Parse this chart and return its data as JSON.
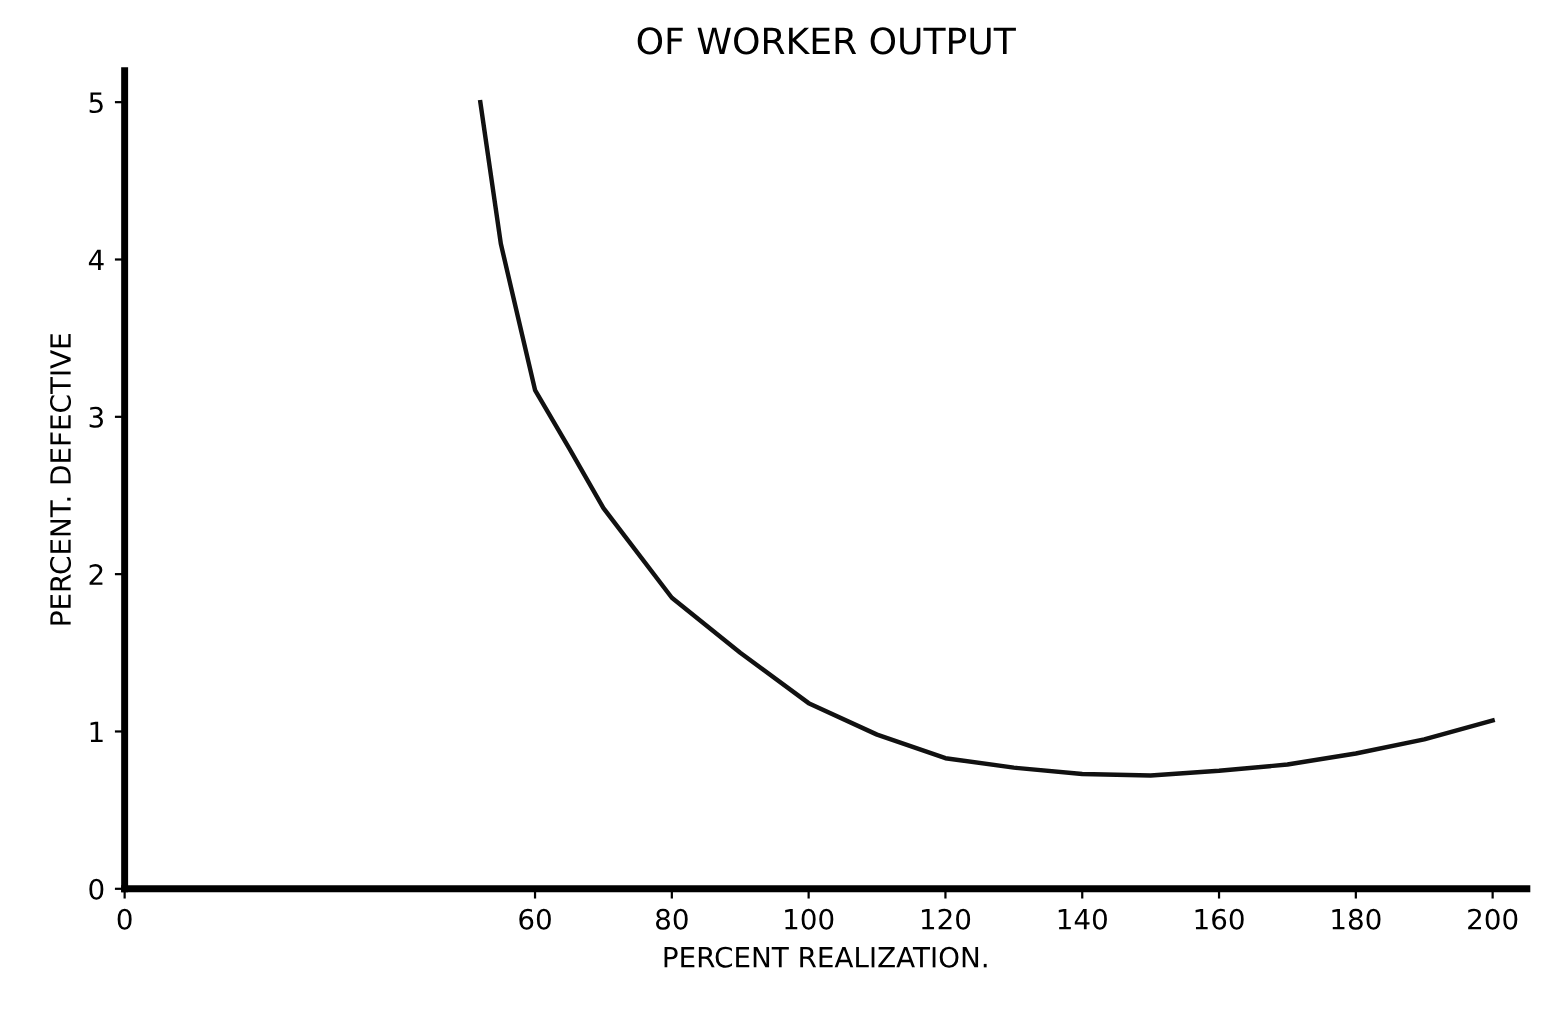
{
  "chart_data": {
    "type": "line",
    "title": "OF WORKER OUTPUT",
    "xlabel": "PERCENT REALIZATION.",
    "ylabel": "PERCENT. DEFECTIVE",
    "x": [
      52,
      55,
      60,
      65,
      70,
      80,
      90,
      100,
      110,
      120,
      130,
      140,
      150,
      160,
      170,
      180,
      190,
      200
    ],
    "series": [
      {
        "color": "#111111",
        "values": [
          5.0,
          4.1,
          3.17,
          2.8,
          2.42,
          1.85,
          1.5,
          1.18,
          0.98,
          0.83,
          0.77,
          0.73,
          0.72,
          0.75,
          0.79,
          0.86,
          0.95,
          1.07
        ]
      }
    ],
    "xlim": [
      0,
      205
    ],
    "xticks": [
      0,
      60,
      80,
      100,
      120,
      140,
      160,
      180,
      200
    ],
    "ylim": [
      0,
      5.2
    ],
    "yticks": [
      0,
      1,
      2,
      3,
      4,
      5
    ],
    "grid": false,
    "marker": "none",
    "line_style": "solid"
  }
}
